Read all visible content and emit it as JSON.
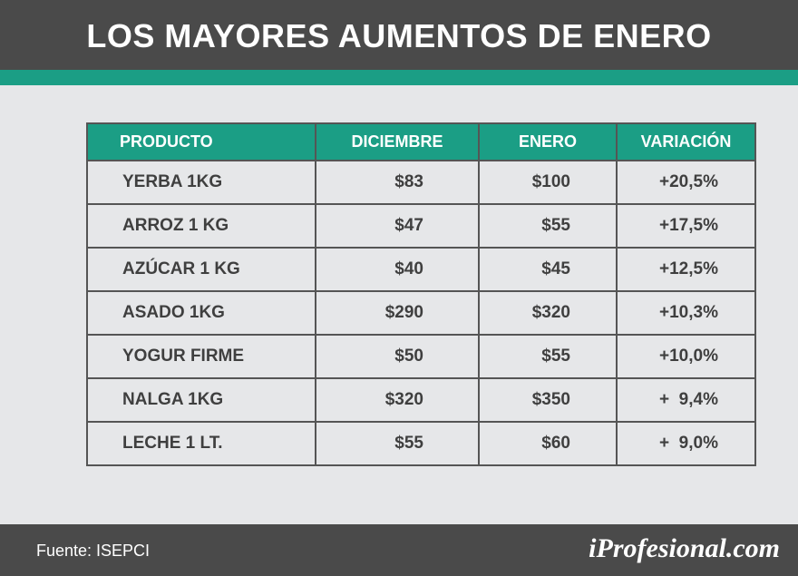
{
  "header": {
    "title": "LOS MAYORES AUMENTOS DE ENERO"
  },
  "chart_data": {
    "type": "table",
    "columns": [
      "PRODUCTO",
      "DICIEMBRE",
      "ENERO",
      "VARIACIÓN"
    ],
    "rows": [
      {
        "producto": "YERBA 1KG",
        "diciembre": "$83",
        "enero": "$100",
        "variacion": "+20,5%"
      },
      {
        "producto": "ARROZ 1 KG",
        "diciembre": "$47",
        "enero": "$55",
        "variacion": "+17,5%"
      },
      {
        "producto": "AZÚCAR 1 KG",
        "diciembre": "$40",
        "enero": "$45",
        "variacion": "+12,5%"
      },
      {
        "producto": "ASADO 1KG",
        "diciembre": "$290",
        "enero": "$320",
        "variacion": "+10,3%"
      },
      {
        "producto": "YOGUR FIRME",
        "diciembre": "$50",
        "enero": "$55",
        "variacion": "+10,0%"
      },
      {
        "producto": "NALGA 1KG",
        "diciembre": "$320",
        "enero": "$350",
        "variacion": "+  9,4%"
      },
      {
        "producto": "LECHE 1 LT.",
        "diciembre": "$55",
        "enero": "$60",
        "variacion": "+  9,0%"
      }
    ]
  },
  "footer": {
    "source": "Fuente: ISEPCI",
    "brand": "iProfesional.com"
  },
  "colors": {
    "header_bg": "#4a4a4a",
    "accent": "#1b9e85",
    "background": "#e6e7e9",
    "text": "#3f3f3f"
  }
}
